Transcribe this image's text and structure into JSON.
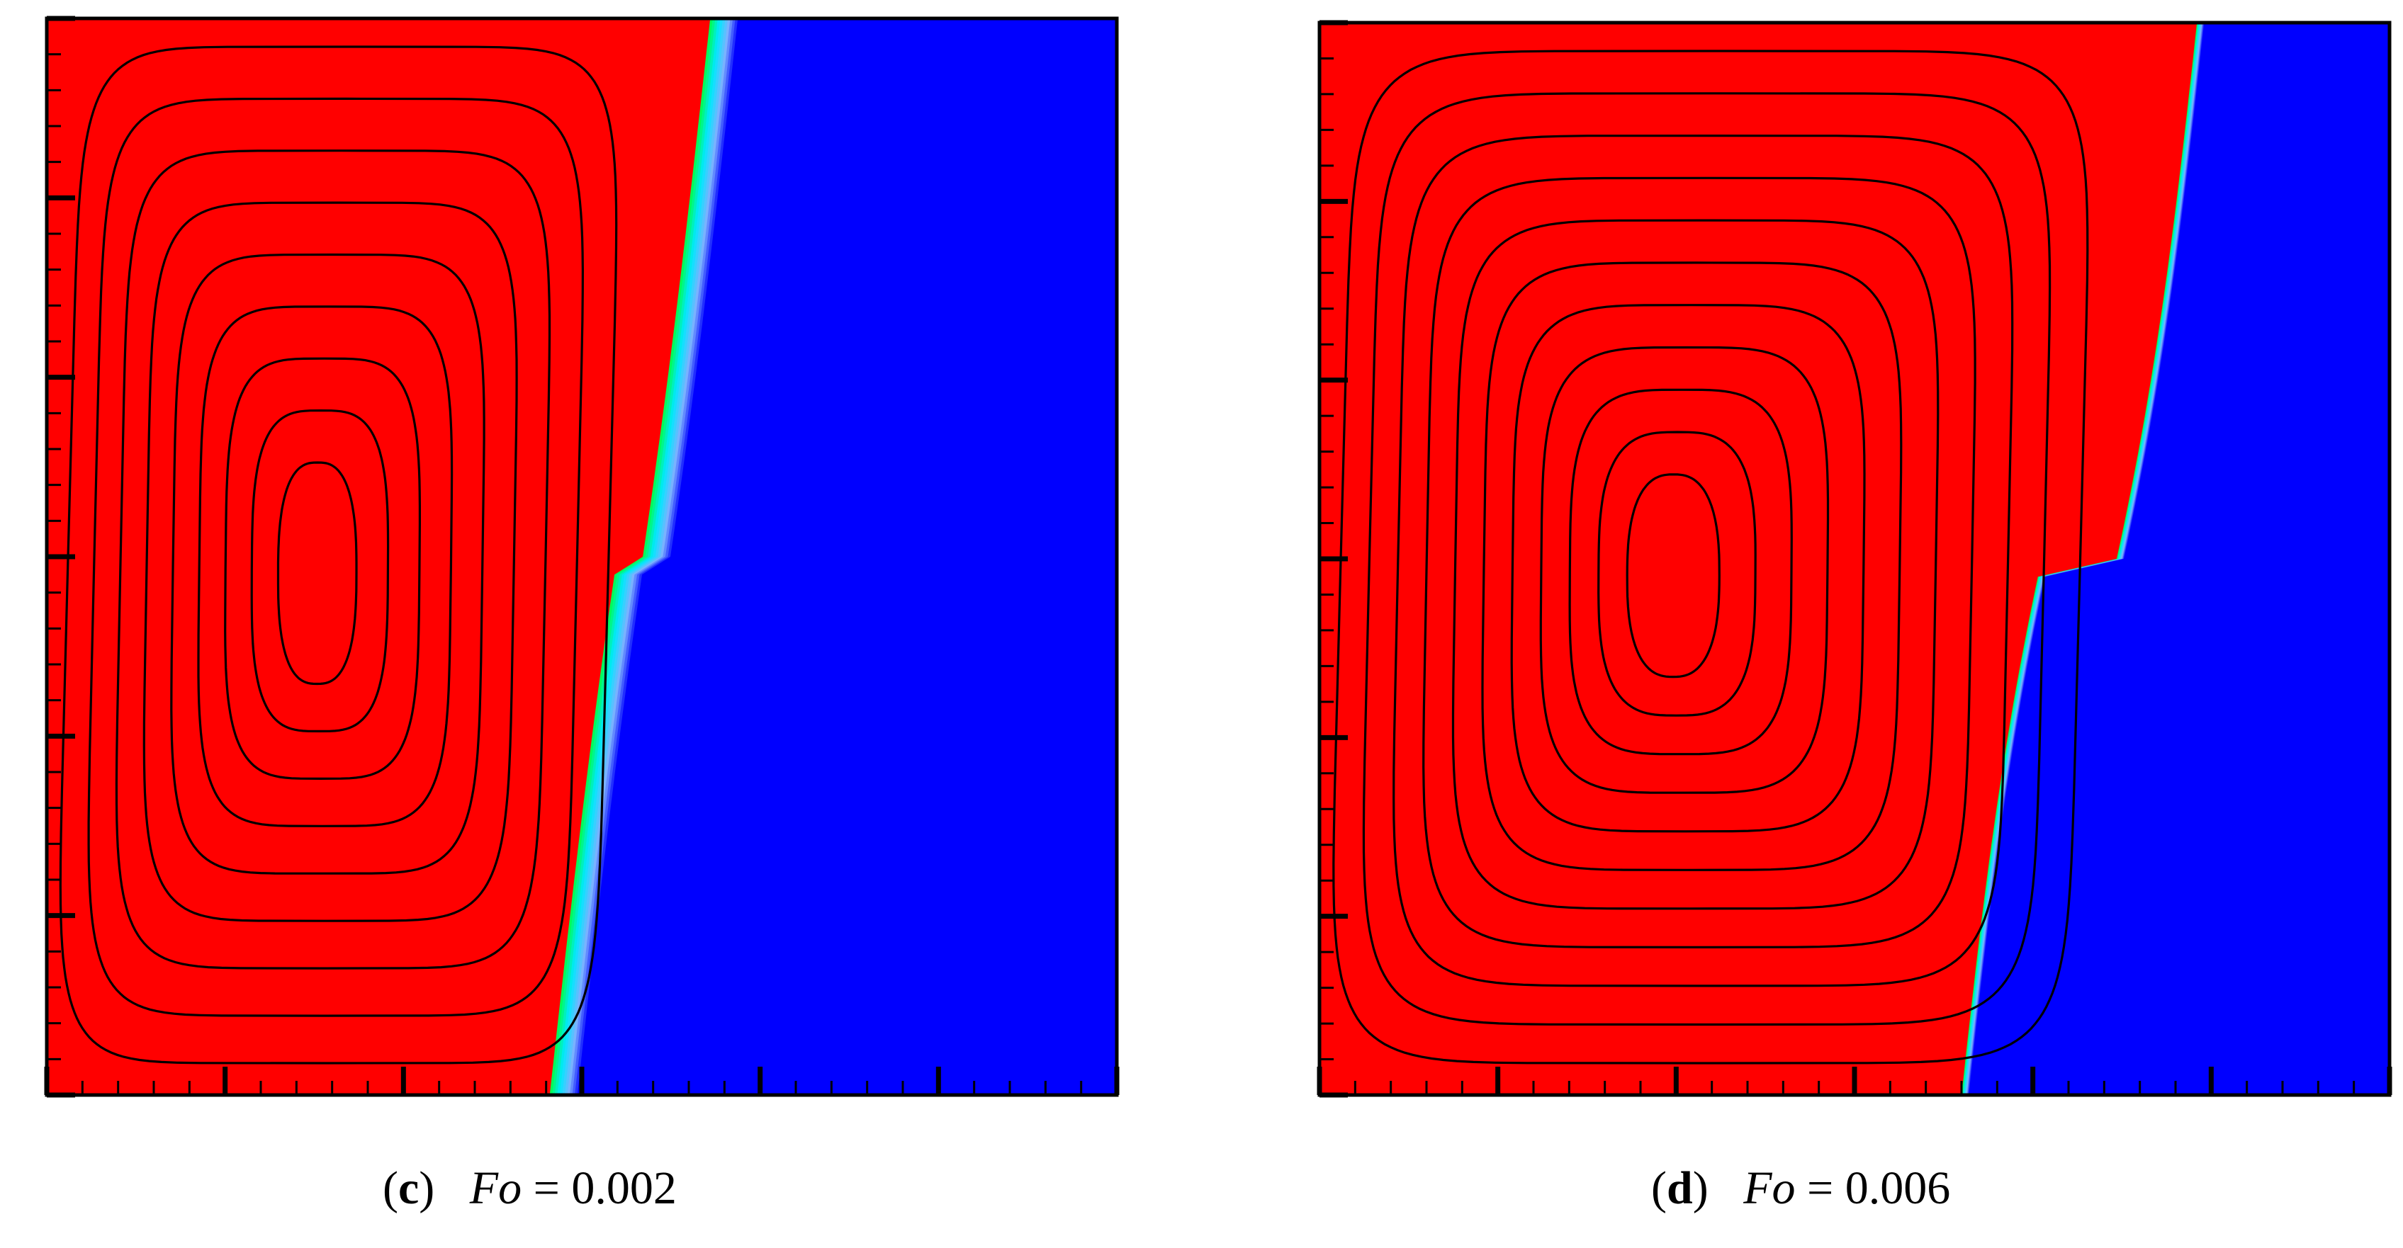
{
  "panels": [
    {
      "id": "c",
      "caption": {
        "open": "(",
        "letter": "c",
        "close": ")",
        "variable": "Fo",
        "equals": "=",
        "value": "0.002"
      },
      "interface": {
        "top_position": 0.62,
        "bottom_position": 0.47,
        "curve_shift": 0.012,
        "band_width": "wide"
      },
      "streamlines": {
        "count": 9,
        "eye_x": 0.26,
        "eye_y": 0.52
      }
    },
    {
      "id": "d",
      "caption": {
        "open": "(",
        "letter": "d",
        "close": ")",
        "variable": "Fo",
        "equals": "=",
        "value": "0.006"
      },
      "interface": {
        "top_position": 0.82,
        "bottom_position": 0.6,
        "curve_shift": 0.035,
        "band_width": "narrow"
      },
      "streamlines": {
        "count": 11,
        "eye_x": 0.34,
        "eye_y": 0.52
      }
    }
  ],
  "colors": {
    "liquid": "#ff0000",
    "solid": "#0000ff",
    "transition": [
      "#ff0000",
      "#ffb000",
      "#c8ff00",
      "#00ff40",
      "#00e8ff",
      "#7fb0ff",
      "#0000ff"
    ],
    "streamline": "#000000",
    "frame": "#000000"
  }
}
